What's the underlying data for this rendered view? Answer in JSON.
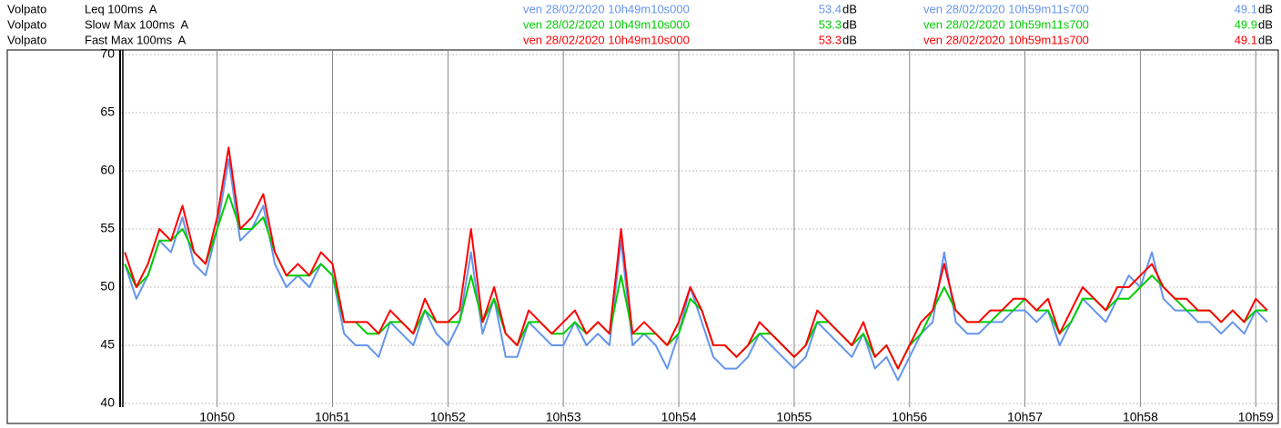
{
  "header": {
    "rows": [
      {
        "source": "Volpato",
        "start_time": "ven 28/02/2020 10h49m10s000",
        "start_value": 53.4,
        "start_unit": "dB",
        "end_time": "ven 28/02/2020 10h59m11s700",
        "end_value": 49.1,
        "end_unit": "dB"
      },
      {
        "source": "Volpato",
        "start_time": "ven 28/02/2020 10h49m10s000",
        "start_value": 53.3,
        "start_unit": "dB",
        "end_time": "ven 28/02/2020 10h59m11s700",
        "end_value": 49.9,
        "end_unit": "dB"
      },
      {
        "source": "Volpato",
        "start_time": "ven 28/02/2020 10h49m10s000",
        "start_value": 53.3,
        "start_unit": "dB",
        "end_time": "ven 28/02/2020 10h59m11s700",
        "end_value": 49.1,
        "end_unit": "dB"
      }
    ]
  },
  "chart_data": {
    "type": "line",
    "xlim": [
      649.167,
      659.195
    ],
    "xticks": [
      {
        "value": 650,
        "label": "10h50"
      },
      {
        "value": 651,
        "label": "10h51"
      },
      {
        "value": 652,
        "label": "10h52"
      },
      {
        "value": 653,
        "label": "10h53"
      },
      {
        "value": 654,
        "label": "10h54"
      },
      {
        "value": 655,
        "label": "10h55"
      },
      {
        "value": 656,
        "label": "10h56"
      },
      {
        "value": 657,
        "label": "10h57"
      },
      {
        "value": 658,
        "label": "10h58"
      },
      {
        "value": 659,
        "label": "10h59"
      }
    ],
    "ylim": [
      40,
      70
    ],
    "yticks": [
      40,
      45,
      50,
      55,
      60,
      65,
      70
    ],
    "grid": true,
    "x": [
      649.2,
      649.3,
      649.4,
      649.5,
      649.6,
      649.7,
      649.8,
      649.9,
      650.0,
      650.1,
      650.2,
      650.3,
      650.4,
      650.5,
      650.6,
      650.7,
      650.8,
      650.9,
      651.0,
      651.1,
      651.2,
      651.3,
      651.4,
      651.5,
      651.6,
      651.7,
      651.8,
      651.9,
      652.0,
      652.1,
      652.2,
      652.3,
      652.4,
      652.5,
      652.6,
      652.7,
      652.8,
      652.9,
      653.0,
      653.1,
      653.2,
      653.3,
      653.4,
      653.5,
      653.6,
      653.7,
      653.8,
      653.9,
      654.0,
      654.1,
      654.2,
      654.3,
      654.4,
      654.5,
      654.6,
      654.7,
      654.8,
      654.9,
      655.0,
      655.1,
      655.2,
      655.3,
      655.4,
      655.5,
      655.6,
      655.7,
      655.8,
      655.9,
      656.0,
      656.1,
      656.2,
      656.3,
      656.4,
      656.5,
      656.6,
      656.7,
      656.8,
      656.9,
      657.0,
      657.1,
      657.2,
      657.3,
      657.4,
      657.5,
      657.6,
      657.7,
      657.8,
      657.9,
      658.0,
      658.1,
      658.2,
      658.3,
      658.4,
      658.5,
      658.6,
      658.7,
      658.8,
      658.9,
      659.0,
      659.1
    ],
    "series": [
      {
        "name": "Leq 100ms  A",
        "color": "#6495ed",
        "values": [
          52,
          49,
          51,
          54,
          53,
          56,
          52,
          51,
          55,
          61,
          54,
          55,
          57,
          52,
          50,
          51,
          50,
          52,
          51,
          46,
          45,
          45,
          44,
          47,
          46,
          45,
          48,
          46,
          45,
          47,
          53,
          46,
          49,
          44,
          44,
          47,
          46,
          45,
          45,
          47,
          45,
          46,
          45,
          54,
          45,
          46,
          45,
          43,
          46,
          50,
          47,
          44,
          43,
          43,
          44,
          46,
          45,
          44,
          43,
          44,
          47,
          46,
          45,
          44,
          46,
          43,
          44,
          42,
          44,
          46,
          47,
          53,
          47,
          46,
          46,
          47,
          47,
          48,
          48,
          47,
          48,
          45,
          47,
          49,
          48,
          47,
          49,
          51,
          50,
          53,
          49,
          48,
          48,
          47,
          47,
          46,
          47,
          46,
          48,
          47
        ]
      },
      {
        "name": "Slow Max 100ms  A",
        "color": "#00cc00",
        "values": [
          52,
          50,
          51,
          54,
          54,
          55,
          53,
          52,
          55,
          58,
          55,
          55,
          56,
          53,
          51,
          51,
          51,
          52,
          51,
          47,
          47,
          46,
          46,
          47,
          47,
          46,
          48,
          47,
          47,
          47,
          51,
          47,
          49,
          46,
          45,
          47,
          47,
          46,
          46,
          47,
          46,
          47,
          46,
          51,
          46,
          46,
          46,
          45,
          46,
          49,
          48,
          45,
          45,
          44,
          45,
          46,
          46,
          45,
          44,
          45,
          47,
          47,
          46,
          45,
          46,
          44,
          45,
          43,
          45,
          46,
          48,
          50,
          48,
          47,
          47,
          47,
          48,
          48,
          49,
          48,
          48,
          46,
          47,
          49,
          49,
          48,
          49,
          49,
          50,
          51,
          50,
          49,
          48,
          48,
          48,
          47,
          48,
          47,
          48,
          48
        ]
      },
      {
        "name": "Fast Max 100ms  A",
        "color": "#ff0000",
        "values": [
          53,
          50,
          52,
          55,
          54,
          57,
          53,
          52,
          56,
          62,
          55,
          56,
          58,
          53,
          51,
          52,
          51,
          53,
          52,
          47,
          47,
          47,
          46,
          48,
          47,
          46,
          49,
          47,
          47,
          48,
          55,
          47,
          50,
          46,
          45,
          48,
          47,
          46,
          47,
          48,
          46,
          47,
          46,
          55,
          46,
          47,
          46,
          45,
          47,
          50,
          48,
          45,
          45,
          44,
          45,
          47,
          46,
          45,
          44,
          45,
          48,
          47,
          46,
          45,
          47,
          44,
          45,
          43,
          45,
          47,
          48,
          52,
          48,
          47,
          47,
          48,
          48,
          49,
          49,
          48,
          49,
          46,
          48,
          50,
          49,
          48,
          50,
          50,
          51,
          52,
          50,
          49,
          49,
          48,
          48,
          47,
          48,
          47,
          49,
          48
        ]
      }
    ]
  }
}
